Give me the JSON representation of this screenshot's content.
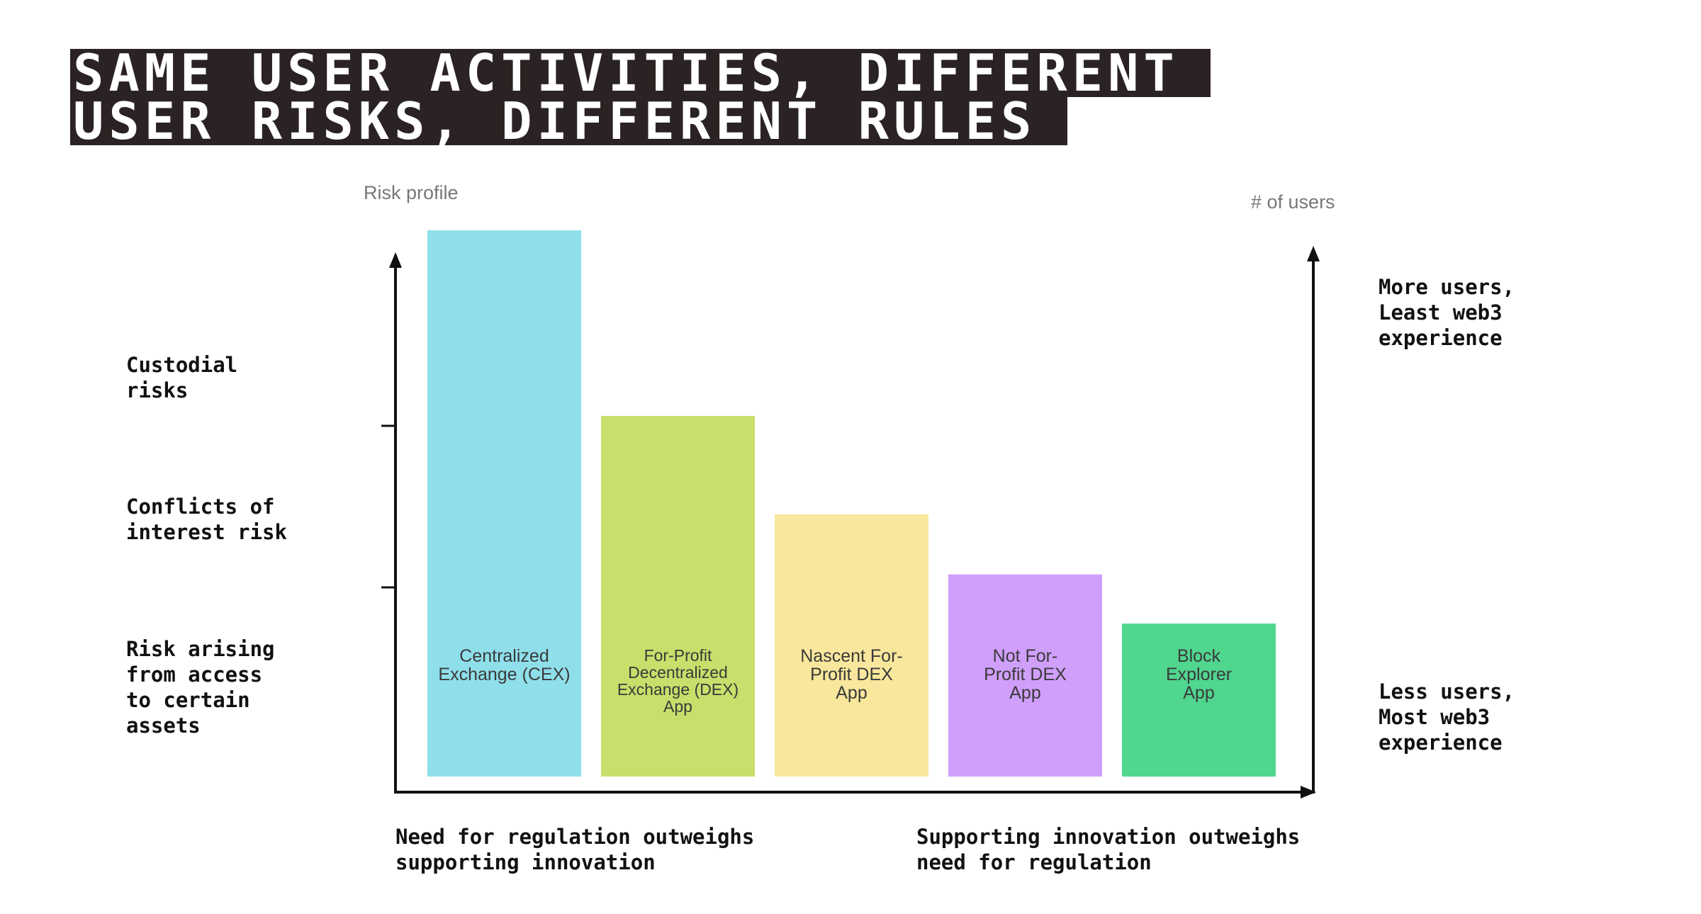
{
  "title": {
    "line1": "SAME USER ACTIVITIES, DIFFERENT",
    "line2": "USER RISKS, DIFFERENT RULES"
  },
  "left_axis": {
    "label": "Risk profile"
  },
  "right_axis": {
    "label": "# of users",
    "top_note": "More users,\nLeast web3\nexperience",
    "bottom_note": "Less users,\nMost web3\nexperience"
  },
  "risk_levels": [
    "Custodial\nrisks",
    "Conflicts of\ninterest risk",
    "Risk arising\nfrom access\nto certain\nassets"
  ],
  "x_axis": {
    "left_note": "Need for regulation outweighs\nsupporting innovation",
    "right_note": "Supporting innovation outweighs\nneed for regulation"
  },
  "chart_data": {
    "type": "bar",
    "categories": [
      "Centralized\nExchange (CEX)",
      "For-Profit\nDecentralized\nExchange (DEX)\nApp",
      "Nascent For-\nProfit DEX\nApp",
      "Not For-\nProfit DEX\nApp",
      "Block\nExplorer\nApp"
    ],
    "values": [
      100,
      66,
      48,
      37,
      28
    ],
    "colors": [
      "#8fdfeb",
      "#c7df6b",
      "#f8e79c",
      "#d09ffb",
      "#50d68f"
    ],
    "ylim": [
      0,
      100
    ],
    "ylabel": "Risk profile",
    "y2label": "# of users",
    "grid": false,
    "legend": "none"
  }
}
